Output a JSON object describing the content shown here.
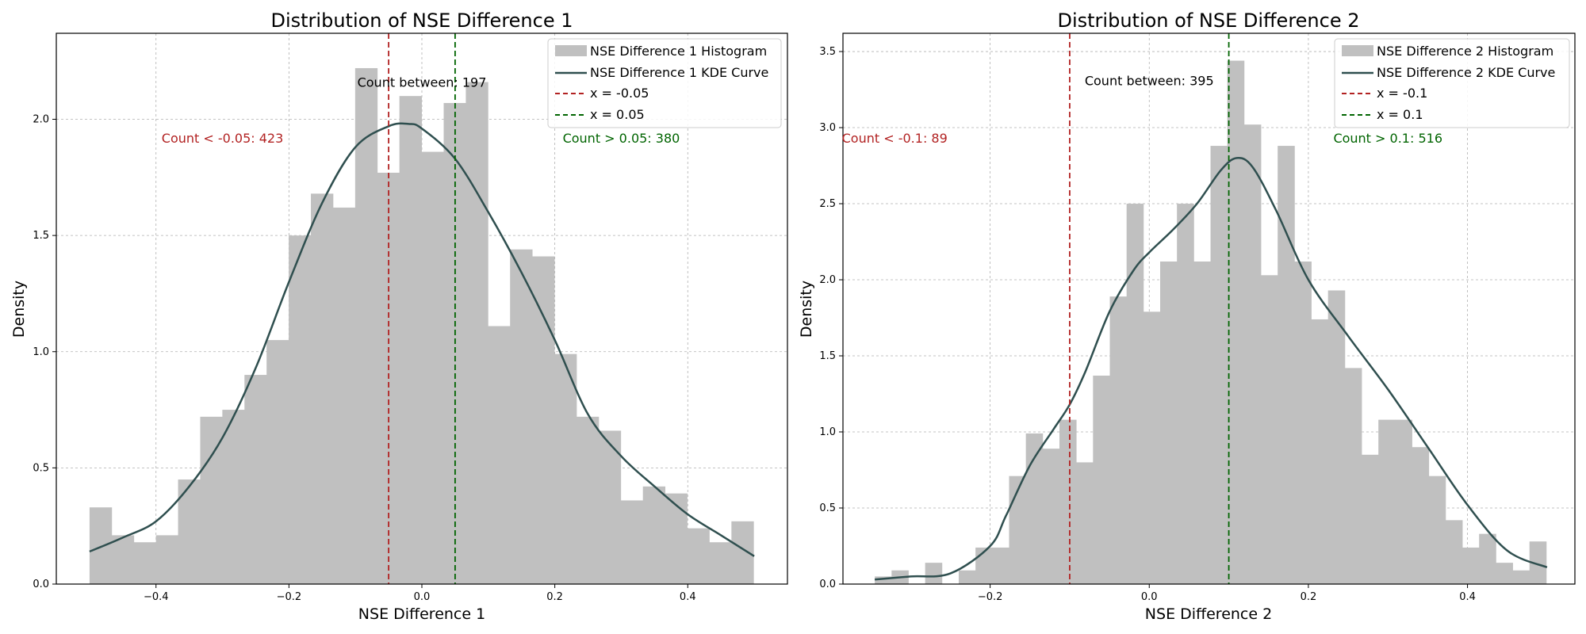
{
  "colors": {
    "histogram": "#c0c0c0",
    "kde": "#2f4f4f",
    "line_left": "#b22222",
    "line_right": "#006400",
    "grid": "#b0b0b0",
    "axis": "#000000"
  },
  "chart_data": [
    {
      "type": "bar",
      "title": "Distribution of NSE Difference 1",
      "xlabel": "NSE Difference 1",
      "ylabel": "Density",
      "xlim": [
        -0.55,
        0.55
      ],
      "ylim": [
        0,
        2.37
      ],
      "xticks": [
        -0.4,
        -0.2,
        0.0,
        0.2,
        0.4
      ],
      "xtick_labels": [
        "−0.4",
        "−0.2",
        "0.0",
        "0.2",
        "0.4"
      ],
      "yticks": [
        0.0,
        0.5,
        1.0,
        1.5,
        2.0
      ],
      "ytick_labels": [
        "0.0",
        "0.5",
        "1.0",
        "1.5",
        "2.0"
      ],
      "grid": true,
      "legend_position": "top-right",
      "bins": {
        "start": -0.5,
        "width": 0.0333,
        "values": [
          0.33,
          0.21,
          0.18,
          0.21,
          0.45,
          0.72,
          0.75,
          0.9,
          1.05,
          1.5,
          1.68,
          1.62,
          2.22,
          1.77,
          2.1,
          1.86,
          2.07,
          2.16,
          1.11,
          1.44,
          1.41,
          0.99,
          0.72,
          0.66,
          0.36,
          0.42,
          0.39,
          0.24,
          0.18,
          0.27
        ]
      },
      "kde": {
        "x": [
          -0.5,
          -0.45,
          -0.4,
          -0.35,
          -0.3,
          -0.25,
          -0.2,
          -0.15,
          -0.1,
          -0.05,
          -0.02,
          0.0,
          0.05,
          0.1,
          0.15,
          0.2,
          0.25,
          0.3,
          0.35,
          0.4,
          0.45,
          0.5
        ],
        "y": [
          0.14,
          0.2,
          0.27,
          0.42,
          0.63,
          0.93,
          1.3,
          1.64,
          1.88,
          1.97,
          1.98,
          1.96,
          1.83,
          1.6,
          1.34,
          1.05,
          0.73,
          0.55,
          0.42,
          0.3,
          0.21,
          0.12
        ]
      },
      "vlines": [
        {
          "x": -0.05,
          "label": "x = -0.05",
          "color_key": "line_left"
        },
        {
          "x": 0.05,
          "label": "x = 0.05",
          "color_key": "line_right"
        }
      ],
      "legend": {
        "histogram": "NSE Difference 1 Histogram",
        "kde": "NSE Difference 1 KDE Curve",
        "line_left": "x = -0.05",
        "line_right": "x = 0.05"
      },
      "annotations": [
        {
          "text": "Count < -0.05: 423",
          "x": -0.3,
          "y": 1.9,
          "color_key": "line_left"
        },
        {
          "text": "Count between: 197",
          "x": 0.0,
          "y": 2.14,
          "color_key": "axis"
        },
        {
          "text": "Count > 0.05: 380",
          "x": 0.3,
          "y": 1.9,
          "color_key": "line_right"
        }
      ]
    },
    {
      "type": "bar",
      "title": "Distribution of NSE Difference 2",
      "xlabel": "NSE Difference 2",
      "ylabel": "Density",
      "xlim": [
        -0.385,
        0.535
      ],
      "ylim": [
        0,
        3.62
      ],
      "xticks": [
        -0.2,
        0.0,
        0.2,
        0.4
      ],
      "xtick_labels": [
        "−0.2",
        "0.0",
        "0.2",
        "0.4"
      ],
      "yticks": [
        0.0,
        0.5,
        1.0,
        1.5,
        2.0,
        2.5,
        3.0,
        3.5
      ],
      "ytick_labels": [
        "0.0",
        "0.5",
        "1.0",
        "1.5",
        "2.0",
        "2.5",
        "3.0",
        "3.5"
      ],
      "grid": true,
      "legend_position": "top-right",
      "bins": {
        "start": -0.345,
        "width": 0.0211,
        "values": [
          0.05,
          0.09,
          0.0,
          0.14,
          0.0,
          0.09,
          0.24,
          0.24,
          0.71,
          0.99,
          0.89,
          1.08,
          0.8,
          1.37,
          1.89,
          2.5,
          1.79,
          2.12,
          2.5,
          2.12,
          2.88,
          3.44,
          3.02,
          2.03,
          2.88,
          2.12,
          1.74,
          1.93,
          1.42,
          0.85,
          1.08,
          1.08,
          0.9,
          0.71,
          0.42,
          0.24,
          0.33,
          0.14,
          0.09,
          0.28
        ]
      },
      "kde": {
        "x": [
          -0.345,
          -0.3,
          -0.25,
          -0.2,
          -0.18,
          -0.15,
          -0.12,
          -0.1,
          -0.08,
          -0.05,
          -0.02,
          0.0,
          0.03,
          0.06,
          0.09,
          0.11,
          0.13,
          0.16,
          0.2,
          0.25,
          0.3,
          0.35,
          0.4,
          0.45,
          0.5
        ],
        "y": [
          0.03,
          0.05,
          0.07,
          0.25,
          0.45,
          0.78,
          1.02,
          1.18,
          1.4,
          1.79,
          2.06,
          2.18,
          2.33,
          2.5,
          2.72,
          2.8,
          2.74,
          2.45,
          2.0,
          1.63,
          1.28,
          0.9,
          0.52,
          0.22,
          0.11
        ]
      },
      "vlines": [
        {
          "x": -0.1,
          "label": "x = -0.1",
          "color_key": "line_left"
        },
        {
          "x": 0.1,
          "label": "x = 0.1",
          "color_key": "line_right"
        }
      ],
      "legend": {
        "histogram": "NSE Difference 2 Histogram",
        "kde": "NSE Difference 2 KDE Curve",
        "line_left": "x = -0.1",
        "line_right": "x = 0.1"
      },
      "annotations": [
        {
          "text": "Count < -0.1: 89",
          "x": -0.32,
          "y": 2.9,
          "color_key": "line_left"
        },
        {
          "text": "Count between: 395",
          "x": 0.0,
          "y": 3.28,
          "color_key": "axis"
        },
        {
          "text": "Count > 0.1: 516",
          "x": 0.3,
          "y": 2.9,
          "color_key": "line_right"
        }
      ]
    }
  ]
}
